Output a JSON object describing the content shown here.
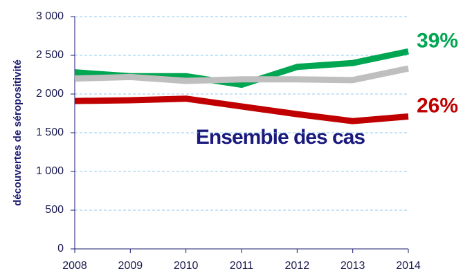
{
  "chart_data": {
    "type": "line",
    "ylabel": "découvertes de séropositivité",
    "annotation": "Ensemble des cas",
    "x": [
      2008,
      2009,
      2010,
      2011,
      2012,
      2013,
      2014
    ],
    "xlim": [
      2008,
      2014
    ],
    "xticks": [
      2008,
      2009,
      2010,
      2011,
      2012,
      2013,
      2014
    ],
    "ylim": [
      0,
      3000
    ],
    "yticks": [
      0,
      500,
      {
        "value": 1000,
        "label": "1 000"
      },
      {
        "value": 1500,
        "label": "1 500"
      },
      {
        "value": 2000,
        "label": "2 000"
      },
      {
        "value": 2500,
        "label": "2 500"
      },
      {
        "value": 3000,
        "label": "3 000"
      }
    ],
    "grid": true,
    "series": [
      {
        "color": "#00a651",
        "values": [
          2280,
          2230,
          2230,
          2120,
          2350,
          2400,
          2550
        ],
        "end_label": "39%"
      },
      {
        "color": "#bfbfbf",
        "values": [
          2200,
          2220,
          2170,
          2190,
          2190,
          2180,
          2330
        ]
      },
      {
        "color": "#c00000",
        "values": [
          1910,
          1920,
          1940,
          1840,
          1740,
          1650,
          1710
        ],
        "end_label": "26%"
      }
    ]
  }
}
